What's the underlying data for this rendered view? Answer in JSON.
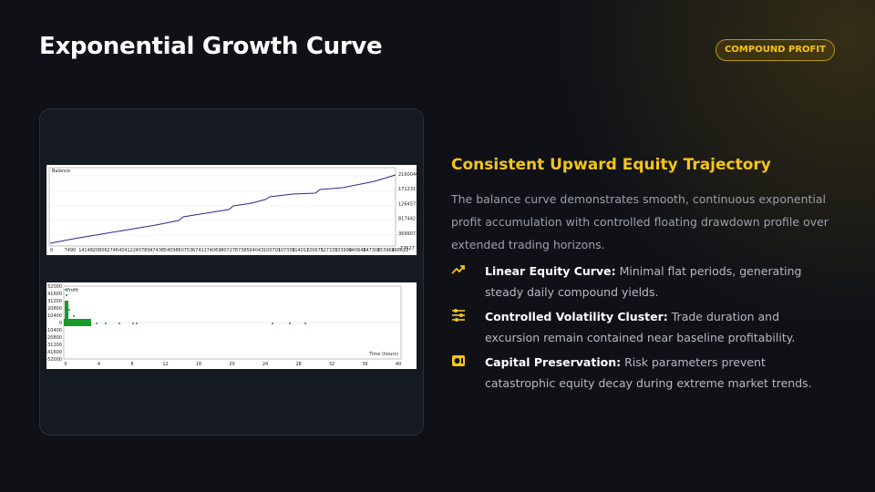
{
  "header": {
    "title": "Exponential Growth Curve",
    "badge": "COMPOUND PROFIT"
  },
  "figures": {
    "balance": {
      "legend": "Balance",
      "yticks": [
        "2160046",
        "1712311",
        "1264577",
        "817442",
        "369907",
        "-77627"
      ],
      "xticks": [
        "0",
        "7490",
        "14148",
        "20806",
        "27464",
        "34122",
        "40780",
        "47438",
        "54096",
        "60753",
        "67411",
        "74069",
        "80727",
        "87385",
        "94043",
        "100701",
        "107359",
        "114017",
        "120675",
        "127333",
        "133990",
        "140648",
        "147306",
        "153964",
        "160622"
      ]
    },
    "profit": {
      "legend": "Profit",
      "xlabel": "Time (hours)",
      "yticks": [
        "52000",
        "41600",
        "31200",
        "20800",
        "10400",
        "0",
        "-10400",
        "-20800",
        "-31200",
        "-41600",
        "-52000"
      ],
      "xticks": [
        "0",
        "4",
        "8",
        "12",
        "16",
        "20",
        "24",
        "28",
        "32",
        "36",
        "40"
      ]
    }
  },
  "content": {
    "heading": "Consistent Upward Equity Trajectory",
    "paragraph": "The balance curve demonstrates smooth, continuous exponential profit accumulation with controlled floating drawdown profile over extended trading horizons.",
    "bullets": [
      {
        "label": "Linear Equity Curve:",
        "text": "Minimal flat periods, generating steady daily compound yields."
      },
      {
        "label": "Controlled Volatility Cluster:",
        "text": "Trade duration and excursion remain contained near baseline profitability."
      },
      {
        "label": "Capital Preservation:",
        "text": "Risk parameters prevent catastrophic equity decay during extreme market trends."
      }
    ]
  }
}
